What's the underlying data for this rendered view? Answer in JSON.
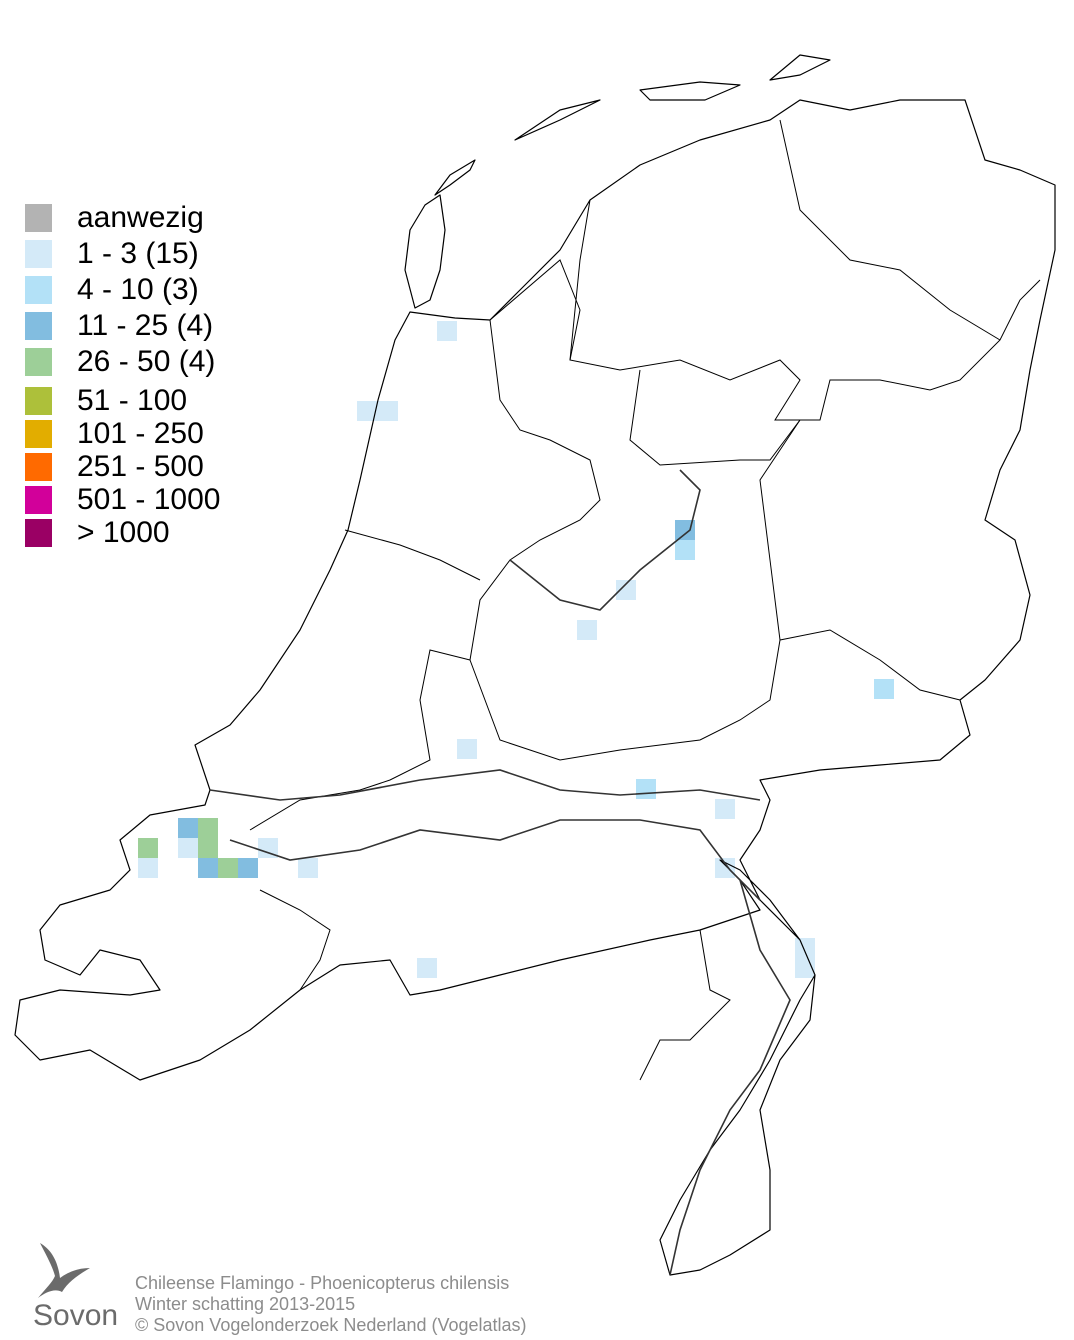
{
  "legend": [
    {
      "label": "aanwezig",
      "color": "#b3b3b3"
    },
    {
      "label": "1 - 3 (15)",
      "color": "#d4eaf8"
    },
    {
      "label": "4 - 10 (3)",
      "color": "#b3e1f7"
    },
    {
      "label": "11 - 25 (4)",
      "color": "#82bde0"
    },
    {
      "label": "26 - 50 (4)",
      "color": "#9dcf98"
    },
    {
      "label": "51 - 100",
      "color": "#adc03a"
    },
    {
      "label": "101 - 250",
      "color": "#e2ad00"
    },
    {
      "label": "251 - 500",
      "color": "#ff6a00"
    },
    {
      "label": "501 - 1000",
      "color": "#d2009a"
    },
    {
      "label": "> 1000",
      "color": "#9a0064"
    }
  ],
  "footer": {
    "line1": "Chileense Flamingo - Phoenicopterus chilensis",
    "line2": "Winter schatting 2013-2015",
    "line3": "© Sovon Vogelonderzoek Nederland (Vogelatlas)"
  },
  "logo": "Sovon"
}
